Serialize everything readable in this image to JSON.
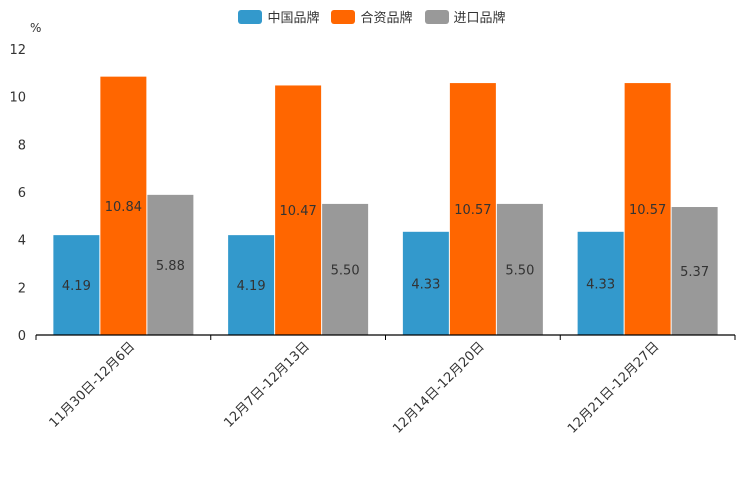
{
  "chart_data": {
    "type": "bar",
    "unit": "%",
    "categories": [
      "11月30日-12月6日",
      "12月7日-12月13日",
      "12月14日-12月20日",
      "12月21日-12月27日"
    ],
    "series": [
      {
        "name": "中国品牌",
        "color": "#3399cc",
        "values": [
          4.19,
          4.19,
          4.33,
          4.33
        ],
        "labels": [
          "4.19",
          "4.19",
          "4.33",
          "4.33"
        ]
      },
      {
        "name": "合资品牌",
        "color": "#ff6600",
        "values": [
          10.84,
          10.47,
          10.57,
          10.57
        ],
        "labels": [
          "10.84",
          "10.47",
          "10.57",
          "10.57"
        ]
      },
      {
        "name": "进口品牌",
        "color": "#999999",
        "values": [
          5.88,
          5.5,
          5.5,
          5.37
        ],
        "labels": [
          "5.88",
          "5.50",
          "5.50",
          "5.37"
        ]
      }
    ],
    "ylim": [
      0,
      12
    ],
    "yticks": [
      "0",
      "2",
      "4",
      "6",
      "8",
      "10",
      "12"
    ],
    "legend_position": "top-center",
    "grid": false
  }
}
